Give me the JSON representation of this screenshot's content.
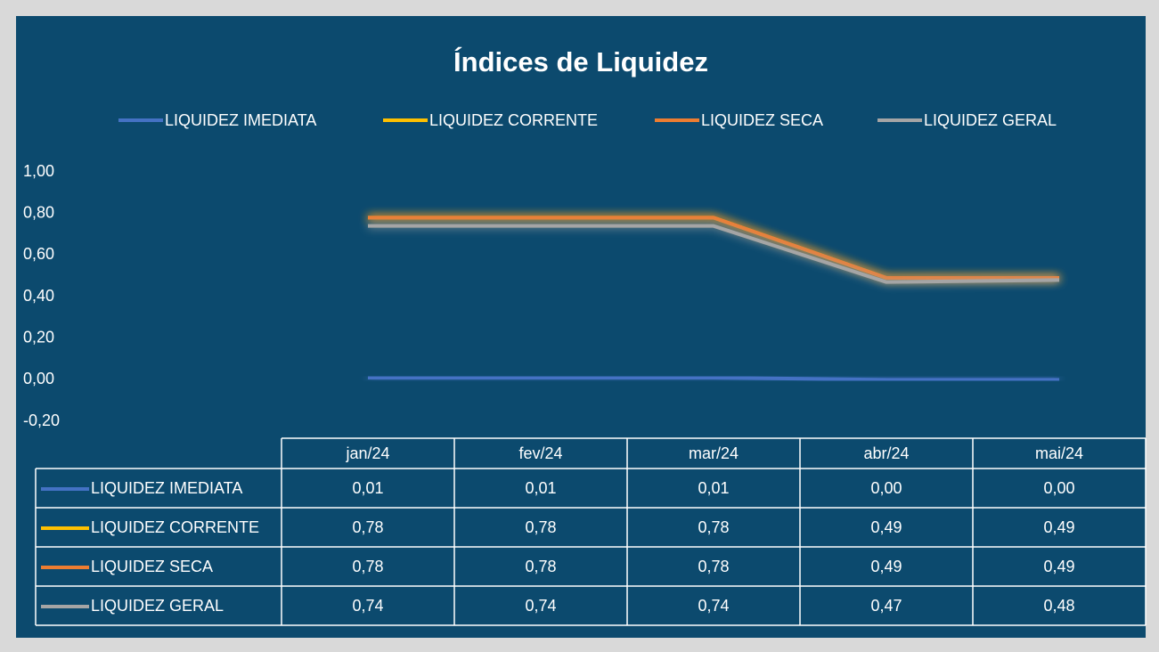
{
  "chart_data": {
    "type": "line",
    "title": "Índices de Liquidez",
    "categories": [
      "jan/24",
      "fev/24",
      "mar/24",
      "abr/24",
      "mai/24"
    ],
    "series": [
      {
        "name": "LIQUIDEZ IMEDIATA",
        "color": "#4472c4",
        "values": [
          0.01,
          0.01,
          0.01,
          0.0,
          0.0
        ],
        "value_labels": [
          "0,01",
          "0,01",
          "0,01",
          "0,00",
          "0,00"
        ]
      },
      {
        "name": "LIQUIDEZ CORRENTE",
        "color": "#ffc000",
        "values": [
          0.78,
          0.78,
          0.78,
          0.49,
          0.49
        ],
        "value_labels": [
          "0,78",
          "0,78",
          "0,78",
          "0,49",
          "0,49"
        ]
      },
      {
        "name": "LIQUIDEZ SECA",
        "color": "#ed7d31",
        "values": [
          0.78,
          0.78,
          0.78,
          0.49,
          0.49
        ],
        "value_labels": [
          "0,78",
          "0,78",
          "0,78",
          "0,49",
          "0,49"
        ]
      },
      {
        "name": "LIQUIDEZ GERAL",
        "color": "#a5a5a5",
        "values": [
          0.74,
          0.74,
          0.74,
          0.47,
          0.48
        ],
        "value_labels": [
          "0,74",
          "0,74",
          "0,74",
          "0,47",
          "0,48"
        ]
      }
    ],
    "ylim": [
      -0.2,
      1.0
    ],
    "yticks": [
      {
        "value": -0.2,
        "label": "-0,20"
      },
      {
        "value": 0,
        "label": "0,00"
      },
      {
        "value": 0.2,
        "label": "0,20"
      },
      {
        "value": 0.4,
        "label": "0,40"
      },
      {
        "value": 0.6,
        "label": "0,60"
      },
      {
        "value": 0.8,
        "label": "0,80"
      },
      {
        "value": 1.0,
        "label": "1,00"
      }
    ],
    "legend": "top",
    "grid": false
  }
}
